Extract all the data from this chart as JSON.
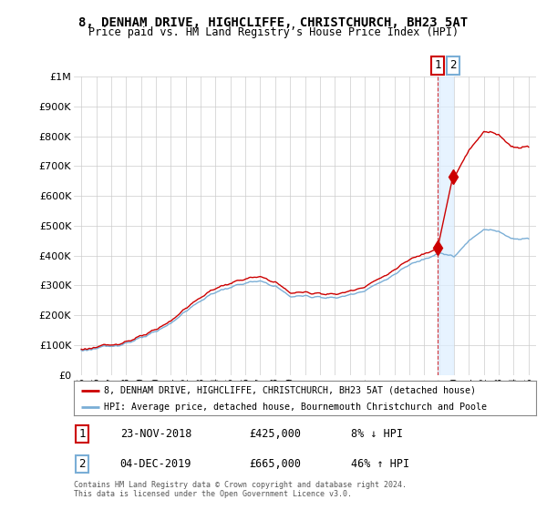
{
  "title": "8, DENHAM DRIVE, HIGHCLIFFE, CHRISTCHURCH, BH23 5AT",
  "subtitle": "Price paid vs. HM Land Registry’s House Price Index (HPI)",
  "legend_line1": "8, DENHAM DRIVE, HIGHCLIFFE, CHRISTCHURCH, BH23 5AT (detached house)",
  "legend_line2": "HPI: Average price, detached house, Bournemouth Christchurch and Poole",
  "footer": "Contains HM Land Registry data © Crown copyright and database right 2024.\nThis data is licensed under the Open Government Licence v3.0.",
  "sale1_date": "23-NOV-2018",
  "sale1_price": 425000,
  "sale1_label": "8% ↓ HPI",
  "sale2_date": "04-DEC-2019",
  "sale2_price": 665000,
  "sale2_label": "46% ↑ HPI",
  "hpi_color": "#7aaed6",
  "sale_color": "#cc0000",
  "background_color": "#ffffff",
  "grid_color": "#cccccc",
  "ylim_min": 0,
  "ylim_max": 1000000,
  "xmin": 1995,
  "xmax": 2025,
  "sale1_x": 2018.9,
  "sale2_x": 2019.92
}
